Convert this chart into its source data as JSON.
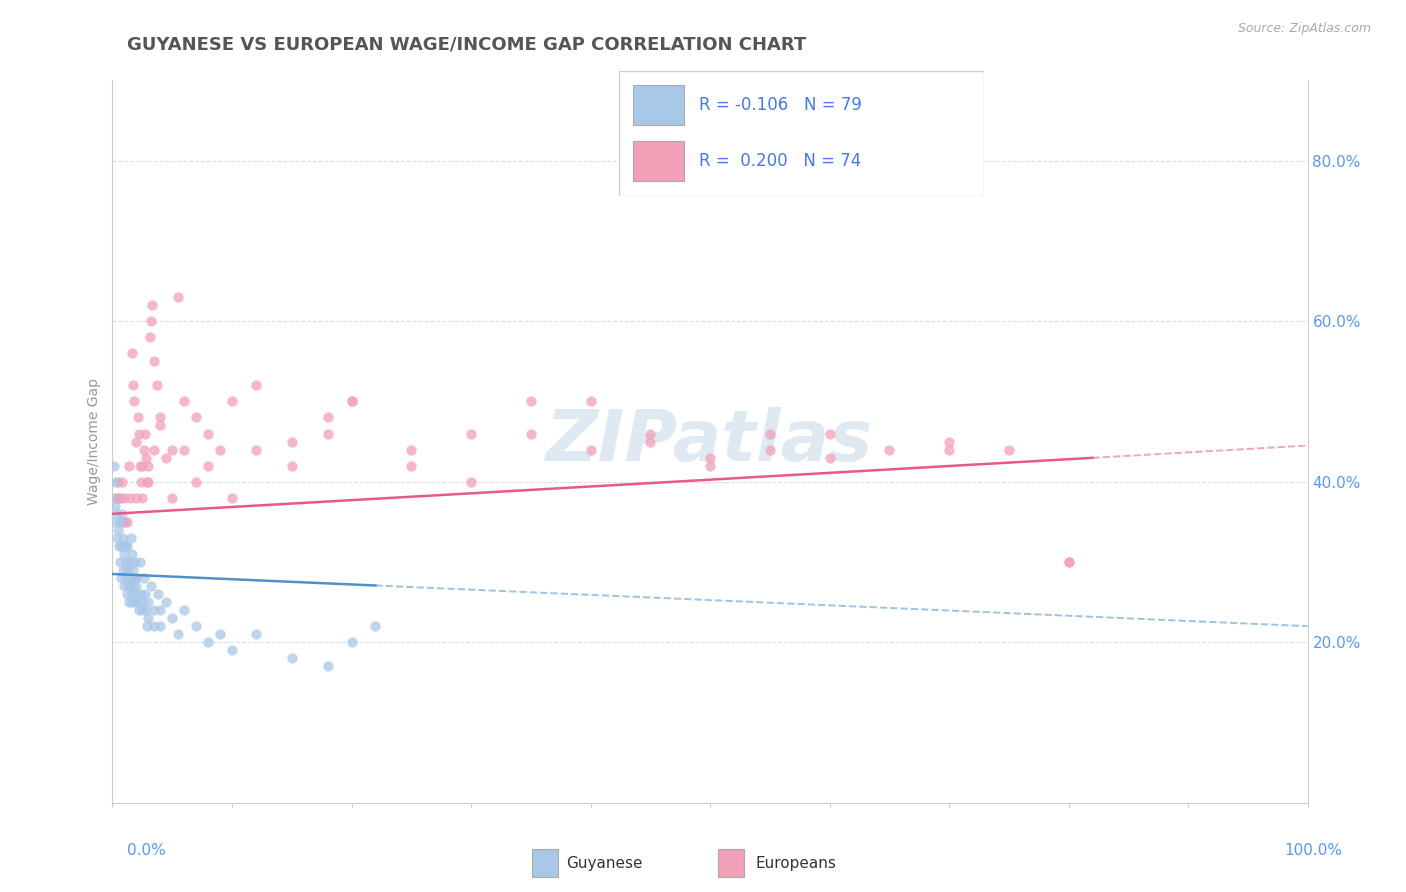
{
  "title": "GUYANESE VS EUROPEAN WAGE/INCOME GAP CORRELATION CHART",
  "source": "Source: ZipAtlas.com",
  "ylabel": "Wage/Income Gap",
  "R_guyanese": -0.106,
  "N_guyanese": 79,
  "R_european": 0.2,
  "N_european": 74,
  "watermark": "ZIPatlas",
  "blue_color": "#a8c8e8",
  "pink_color": "#f4a0b8",
  "blue_line": "#5090c8",
  "pink_line": "#e85888",
  "title_color": "#555555",
  "axis_label_color": "#5599ff",
  "legend_R_color": "#4477ff",
  "guyanese_x": [
    0.1,
    0.15,
    0.2,
    0.25,
    0.3,
    0.35,
    0.4,
    0.45,
    0.5,
    0.55,
    0.6,
    0.65,
    0.7,
    0.75,
    0.8,
    0.85,
    0.9,
    0.95,
    1.0,
    1.05,
    1.1,
    1.15,
    1.2,
    1.25,
    1.3,
    1.35,
    1.4,
    1.45,
    1.5,
    1.55,
    1.6,
    1.65,
    1.7,
    1.75,
    1.8,
    1.85,
    1.9,
    1.95,
    2.0,
    2.1,
    2.2,
    2.3,
    2.4,
    2.5,
    2.6,
    2.7,
    2.8,
    2.9,
    3.0,
    3.2,
    3.5,
    3.8,
    4.0,
    4.5,
    5.0,
    5.5,
    6.0,
    7.0,
    8.0,
    9.0,
    10.0,
    12.0,
    15.0,
    18.0,
    20.0,
    2.0,
    2.5,
    3.0,
    3.5,
    4.0,
    1.0,
    1.2,
    1.4,
    1.6,
    1.8,
    0.5,
    0.7,
    0.9,
    1.1,
    22.0
  ],
  "guyanese_y": [
    38,
    42,
    35,
    37,
    40,
    33,
    36,
    34,
    38,
    32,
    30,
    35,
    28,
    32,
    36,
    29,
    33,
    31,
    27,
    35,
    30,
    28,
    26,
    32,
    29,
    27,
    25,
    30,
    28,
    33,
    26,
    31,
    29,
    27,
    25,
    30,
    28,
    26,
    27,
    25,
    24,
    30,
    26,
    24,
    28,
    26,
    24,
    22,
    25,
    27,
    24,
    26,
    22,
    25,
    23,
    21,
    24,
    22,
    20,
    21,
    19,
    21,
    18,
    17,
    20,
    28,
    25,
    23,
    22,
    24,
    32,
    29,
    27,
    25,
    28,
    40,
    38,
    35,
    32,
    22
  ],
  "european_x": [
    0.5,
    0.8,
    1.0,
    1.2,
    1.4,
    1.5,
    1.6,
    1.7,
    1.8,
    2.0,
    2.1,
    2.2,
    2.3,
    2.4,
    2.5,
    2.6,
    2.7,
    2.8,
    2.9,
    3.0,
    3.1,
    3.2,
    3.3,
    3.5,
    3.7,
    4.0,
    4.5,
    5.0,
    5.5,
    6.0,
    7.0,
    8.0,
    9.0,
    10.0,
    12.0,
    15.0,
    18.0,
    20.0,
    25.0,
    30.0,
    35.0,
    40.0,
    45.0,
    50.0,
    55.0,
    60.0,
    65.0,
    70.0,
    75.0,
    80.0,
    2.0,
    2.5,
    3.0,
    3.5,
    4.0,
    5.0,
    6.0,
    7.0,
    8.0,
    10.0,
    12.0,
    15.0,
    18.0,
    20.0,
    25.0,
    30.0,
    35.0,
    40.0,
    45.0,
    50.0,
    55.0,
    60.0,
    70.0,
    80.0
  ],
  "european_y": [
    38,
    40,
    38,
    35,
    42,
    38,
    56,
    52,
    50,
    45,
    48,
    46,
    42,
    40,
    38,
    44,
    46,
    43,
    40,
    42,
    58,
    60,
    62,
    55,
    52,
    47,
    43,
    44,
    63,
    50,
    48,
    46,
    44,
    50,
    52,
    45,
    48,
    50,
    42,
    40,
    50,
    44,
    45,
    42,
    44,
    43,
    44,
    45,
    44,
    30,
    38,
    42,
    40,
    44,
    48,
    38,
    44,
    40,
    42,
    38,
    44,
    42,
    46,
    50,
    44,
    46,
    46,
    50,
    46,
    43,
    46,
    46,
    44,
    30
  ],
  "xlim": [
    0,
    100
  ],
  "ylim": [
    0,
    90
  ],
  "ytick_vals": [
    20,
    40,
    60,
    80
  ],
  "ytick_labels": [
    "20.0%",
    "40.0%",
    "60.0%",
    "80.0%"
  ],
  "grid_color": "#dddddd",
  "bg_color": "#ffffff",
  "title_fontsize": 13,
  "axis_fontsize": 11,
  "dot_size": 55,
  "dot_alpha": 0.75,
  "trend_lw": 1.8,
  "blue_trend_x_start": 0,
  "blue_trend_x_solid_end": 22,
  "blue_trend_x_dashed_end": 100,
  "pink_trend_x_start": 0,
  "pink_trend_x_solid_end": 82,
  "pink_trend_x_dashed_end": 100,
  "blue_intercept": 28.5,
  "blue_slope": -0.065,
  "pink_intercept": 36.0,
  "pink_slope": 0.085
}
